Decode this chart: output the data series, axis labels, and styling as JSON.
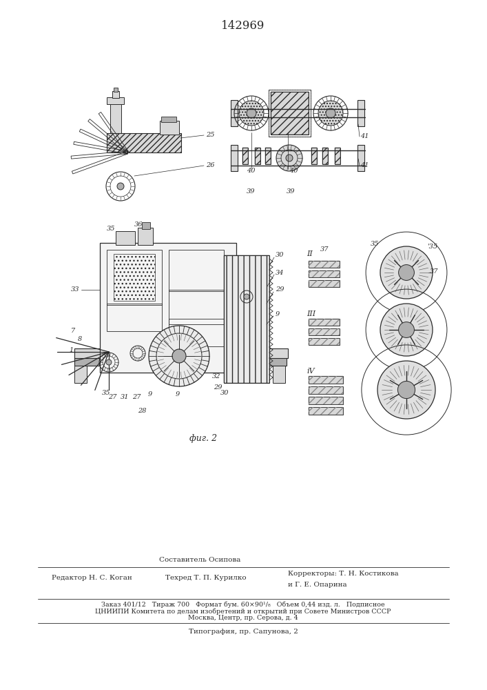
{
  "title": "142969",
  "title_fontsize": 12,
  "fig_caption": "фиг. 2",
  "footer": {
    "sestavitel_label": "Составитель Осипова",
    "redaktor_label": "Редактор Н. С. Коган",
    "tehred_label": "Техред Т. П. Курилко",
    "korrektory_label": "Корректоры: Т. Н. Костикова",
    "korrektory2": "и Г. Е. Опарина",
    "zakaz": "Заказ 401/12   Тираж 700   Формат бум. 60×90¹/₈   Объем 0,44 изд. л.   Подписное",
    "tsnipi": "ЦНИИПИ Комитета по делам изобретений и открытий при Совете Министров СССР",
    "moskva": "Москва, Центр, пр. Серова, д. 4",
    "tipografia": "Типография, пр. Сапунова, 2"
  },
  "bg_color": "#ffffff",
  "line_color": "#000000",
  "drawing_color": "#2a2a2a",
  "gray_light": "#d8d8d8",
  "gray_med": "#b0b0b0",
  "gray_dark": "#888888"
}
